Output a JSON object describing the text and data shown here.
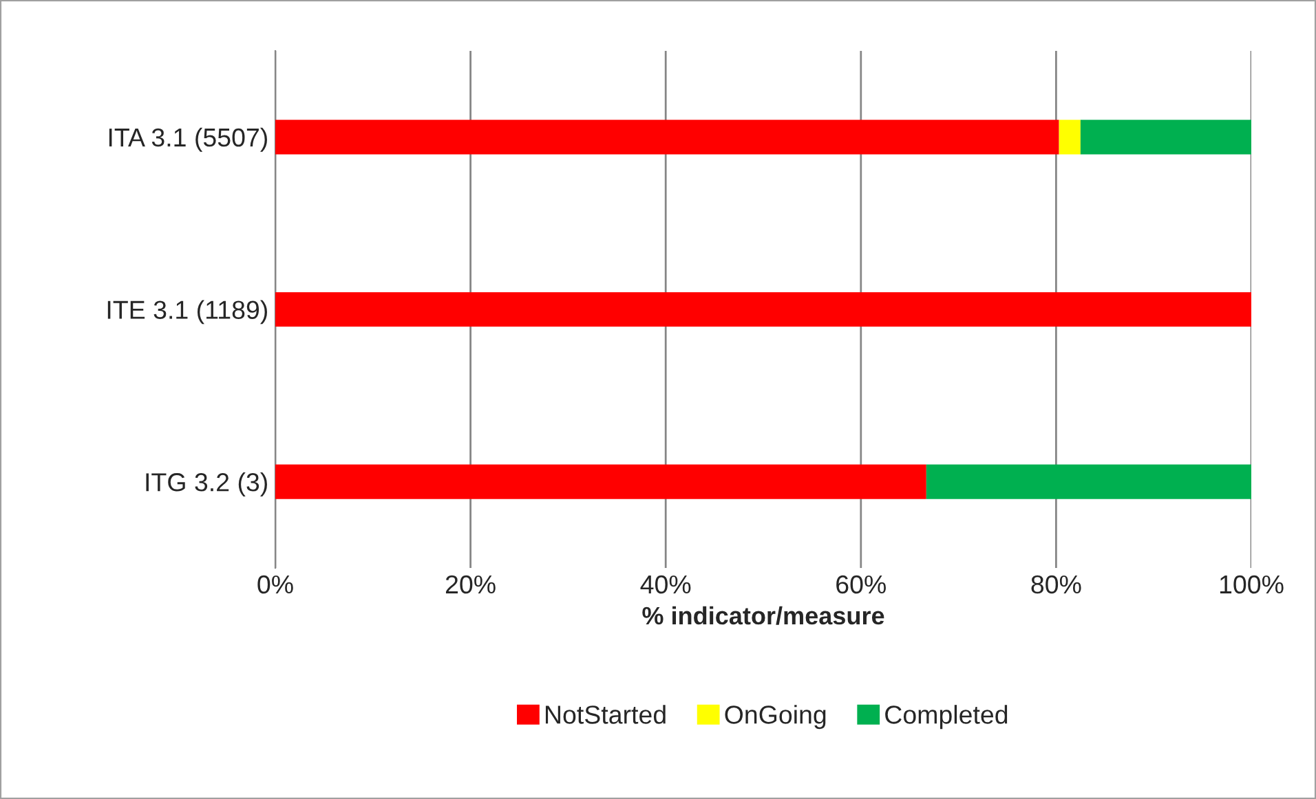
{
  "chart_data": {
    "type": "bar",
    "orientation": "horizontal",
    "stacked": true,
    "categories": [
      "ITA 3.1 (5507)",
      "ITE 3.1 (1189)",
      "ITG 3.2 (3)"
    ],
    "series": [
      {
        "name": "NotStarted",
        "color": "#ff0000",
        "values": [
          80.3,
          100,
          66.7
        ]
      },
      {
        "name": "OnGoing",
        "color": "#ffff00",
        "values": [
          2.2,
          0,
          0
        ]
      },
      {
        "name": "Completed",
        "color": "#00b050",
        "values": [
          17.5,
          0,
          33.3
        ]
      }
    ],
    "xlabel": "% indicator/measure",
    "xlim": [
      0,
      100
    ],
    "xticks": [
      {
        "value": 0,
        "label": "0%"
      },
      {
        "value": 20,
        "label": "20%"
      },
      {
        "value": 40,
        "label": "40%"
      },
      {
        "value": 60,
        "label": "60%"
      },
      {
        "value": 80,
        "label": "80%"
      },
      {
        "value": 100,
        "label": "100%"
      }
    ],
    "grid": "x",
    "legend": "bottom"
  }
}
